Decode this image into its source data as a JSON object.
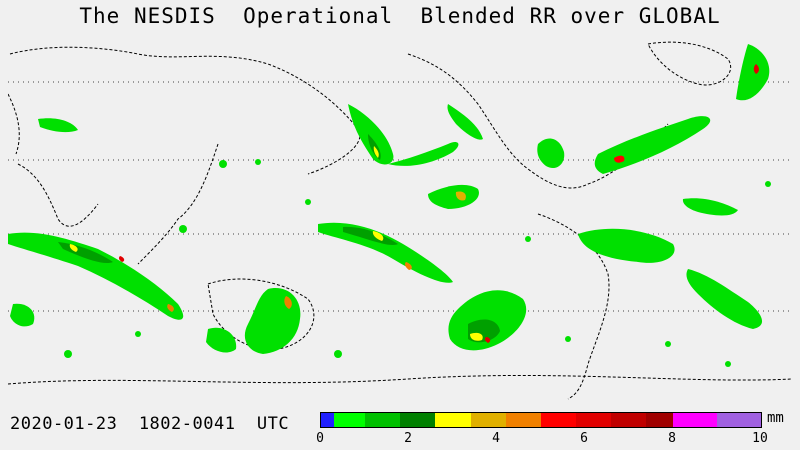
{
  "title": "The NESDIS  Operational  Blended RR over GLOBAL",
  "timestamp": "2020-01-23  1802-0041  UTC",
  "units": "mm",
  "colorbar": {
    "ticks": [
      "0",
      "2",
      "4",
      "6",
      "8",
      "10"
    ],
    "segments": [
      {
        "color": "#2020ff",
        "start": 0.0,
        "end": 0.3
      },
      {
        "color": "#00ff00",
        "start": 0.3,
        "end": 1.0
      },
      {
        "color": "#00c000",
        "start": 1.0,
        "end": 1.8
      },
      {
        "color": "#008000",
        "start": 1.8,
        "end": 2.6
      },
      {
        "color": "#ffff00",
        "start": 2.6,
        "end": 3.4
      },
      {
        "color": "#e0b000",
        "start": 3.4,
        "end": 4.2
      },
      {
        "color": "#f08000",
        "start": 4.2,
        "end": 5.0
      },
      {
        "color": "#ff0000",
        "start": 5.0,
        "end": 5.8
      },
      {
        "color": "#e00000",
        "start": 5.8,
        "end": 6.6
      },
      {
        "color": "#c00000",
        "start": 6.6,
        "end": 7.4
      },
      {
        "color": "#a00000",
        "start": 7.4,
        "end": 8.0
      },
      {
        "color": "#ff00ff",
        "start": 8.0,
        "end": 9.0
      },
      {
        "color": "#a060e0",
        "start": 9.0,
        "end": 10.0
      }
    ]
  }
}
